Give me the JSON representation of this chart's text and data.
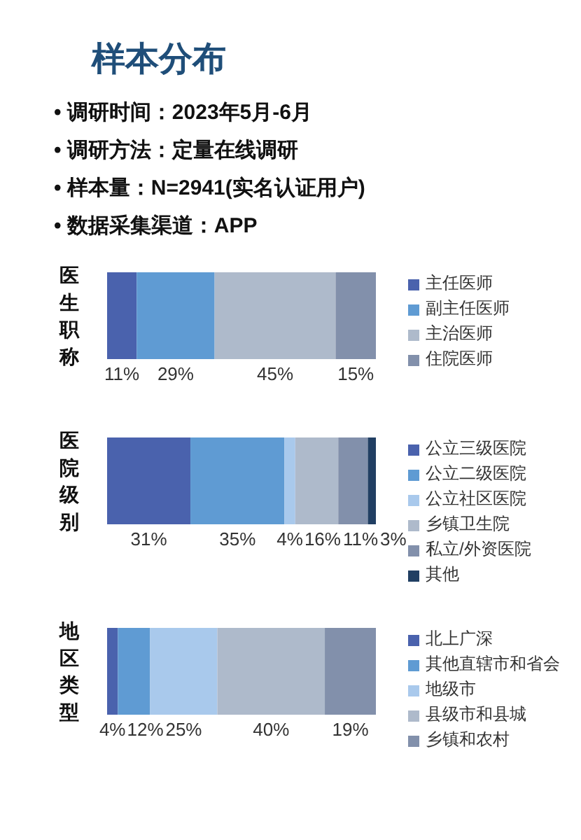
{
  "chart_data": [
    {
      "type": "other",
      "title": "样本分布",
      "annotations": [
        "• 调研时间：2023年5月-6月",
        "• 调研方法：定量在线调研",
        "• 样本量：N=2941(实名认证用户)",
        "• 数据采集渠道：APP"
      ]
    },
    {
      "type": "bar",
      "orientation": "horizontal",
      "stacked": true,
      "legend": "right",
      "categories": [
        "医生职称"
      ],
      "series": [
        {
          "name": "主任医师",
          "color": "#4a62ad",
          "values": [
            11
          ],
          "value_labels": [
            "11%"
          ]
        },
        {
          "name": "副主任医师",
          "color": "#5f9bd3",
          "values": [
            29
          ],
          "value_labels": [
            "29%"
          ]
        },
        {
          "name": "主治医师",
          "color": "#aebacb",
          "values": [
            45
          ],
          "value_labels": [
            "45%"
          ]
        },
        {
          "name": "住院医师",
          "color": "#8290ab",
          "values": [
            15
          ],
          "value_labels": [
            "15%"
          ]
        }
      ]
    },
    {
      "type": "bar",
      "orientation": "horizontal",
      "stacked": true,
      "legend": "right",
      "categories": [
        "医院级别"
      ],
      "series": [
        {
          "name": "公立三级医院",
          "color": "#4a62ad",
          "values": [
            31
          ],
          "value_labels": [
            "31%"
          ]
        },
        {
          "name": "公立二级医院",
          "color": "#5f9bd3",
          "values": [
            35
          ],
          "value_labels": [
            "35%"
          ]
        },
        {
          "name": "公立社区医院",
          "color": "#a9c9ec",
          "values": [
            4
          ],
          "value_labels": [
            "4%"
          ]
        },
        {
          "name": "乡镇卫生院",
          "color": "#aebacb",
          "values": [
            16
          ],
          "value_labels": [
            "16%"
          ]
        },
        {
          "name": "私立/外资医院",
          "color": "#8290ab",
          "values": [
            11
          ],
          "value_labels": [
            "11%"
          ]
        },
        {
          "name": "其他",
          "color": "#213f63",
          "values": [
            3
          ],
          "value_labels": [
            "3%"
          ]
        }
      ]
    },
    {
      "type": "bar",
      "orientation": "horizontal",
      "stacked": true,
      "legend": "right",
      "categories": [
        "地区类型"
      ],
      "series": [
        {
          "name": "北上广深",
          "color": "#4a62ad",
          "values": [
            4
          ],
          "value_labels": [
            "4%"
          ]
        },
        {
          "name": "其他直辖市和省会",
          "color": "#5f9bd3",
          "values": [
            12
          ],
          "value_labels": [
            "12%"
          ]
        },
        {
          "name": "地级市",
          "color": "#a9c9ec",
          "values": [
            25
          ],
          "value_labels": [
            "25%"
          ]
        },
        {
          "name": "县级市和县城",
          "color": "#aebacb",
          "values": [
            40
          ],
          "value_labels": [
            "40%"
          ]
        },
        {
          "name": "乡镇和农村",
          "color": "#8290ab",
          "values": [
            19
          ],
          "value_labels": [
            "19%"
          ]
        }
      ]
    }
  ]
}
